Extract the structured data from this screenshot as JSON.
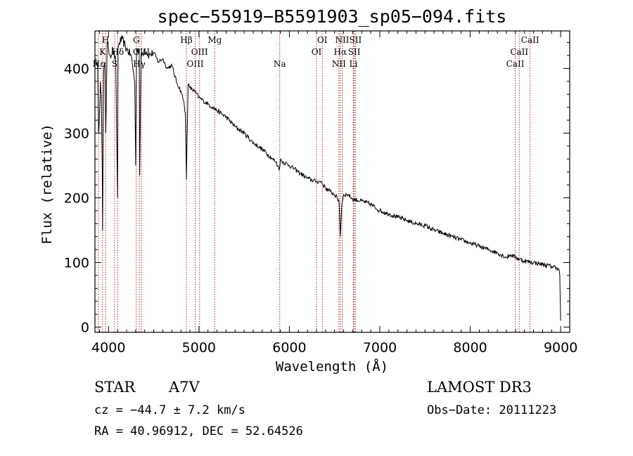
{
  "chart_data": {
    "type": "line",
    "title": "spec−55919−B5591903_sp05−094.fits",
    "xlabel": "Wavelength (Å)",
    "ylabel": "Flux (relative)",
    "xlim": [
      3850,
      9100
    ],
    "ylim": [
      -8,
      458
    ],
    "xticks": [
      4000,
      5000,
      6000,
      7000,
      8000,
      9000
    ],
    "xtick_labels": [
      "4000",
      "5000",
      "6000",
      "7000",
      "8000",
      "9000"
    ],
    "yticks": [
      0,
      100,
      200,
      300,
      400
    ],
    "ytick_labels": [
      "0",
      "100",
      "200",
      "300",
      "400"
    ],
    "series": [
      {
        "name": "spectrum",
        "x": [
          3860,
          3880,
          3890,
          3900,
          3910,
          3920,
          3930,
          3935,
          3945,
          3960,
          3970,
          3985,
          4000,
          4020,
          4050,
          4080,
          4100,
          4105,
          4120,
          4150,
          4200,
          4250,
          4290,
          4300,
          4310,
          4340,
          4345,
          4360,
          4400,
          4450,
          4500,
          4550,
          4600,
          4650,
          4700,
          4750,
          4800,
          4830,
          4850,
          4855,
          4862,
          4870,
          4880,
          4900,
          4950,
          5000,
          5050,
          5100,
          5150,
          5200,
          5300,
          5400,
          5500,
          5600,
          5700,
          5800,
          5850,
          5890,
          5900,
          6000,
          6100,
          6200,
          6300,
          6350,
          6400,
          6450,
          6500,
          6550,
          6563,
          6580,
          6600,
          6650,
          6700,
          6800,
          6900,
          7000,
          7100,
          7200,
          7300,
          7400,
          7500,
          7600,
          7700,
          7800,
          7900,
          8000,
          8100,
          8200,
          8300,
          8400,
          8450,
          8500,
          8600,
          8700,
          8800,
          8900,
          8960,
          8980,
          8990,
          9000
        ],
        "y": [
          415,
          400,
          300,
          330,
          380,
          360,
          250,
          150,
          390,
          410,
          300,
          440,
          430,
          420,
          430,
          410,
          200,
          430,
          440,
          445,
          430,
          420,
          380,
          250,
          430,
          430,
          235,
          420,
          430,
          420,
          425,
          410,
          415,
          400,
          405,
          380,
          365,
          350,
          330,
          290,
          228,
          300,
          375,
          370,
          365,
          355,
          350,
          345,
          340,
          335,
          325,
          310,
          300,
          285,
          275,
          262,
          255,
          245,
          258,
          250,
          240,
          230,
          225,
          225,
          215,
          210,
          205,
          195,
          140,
          190,
          205,
          205,
          198,
          195,
          190,
          180,
          175,
          170,
          165,
          160,
          157,
          150,
          145,
          140,
          135,
          130,
          125,
          120,
          115,
          108,
          112,
          108,
          102,
          100,
          97,
          94,
          92,
          90,
          80,
          10
        ]
      }
    ],
    "emission_lines": [
      {
        "label": "Hε",
        "lambda": 3889,
        "row": 3
      },
      {
        "label": "K",
        "lambda": 3934,
        "row": 2
      },
      {
        "label": "H",
        "lambda": 3968,
        "row": 1
      },
      {
        "label": "Hδ",
        "lambda": 4102,
        "row": 2
      },
      {
        "label": "S",
        "lambda": 4068,
        "row": 3
      },
      {
        "label": "G",
        "lambda": 4307,
        "row": 1
      },
      {
        "label": "OIII",
        "lambda": 4363,
        "row": 2
      },
      {
        "label": "Hγ",
        "lambda": 4340,
        "row": 3
      },
      {
        "label": "Hβ",
        "lambda": 4861,
        "row": 1
      },
      {
        "label": "OIII",
        "lambda": 4959,
        "row": 3
      },
      {
        "label": "OIII",
        "lambda": 5007,
        "row": 2
      },
      {
        "label": "Mg",
        "lambda": 5175,
        "row": 1
      },
      {
        "label": "Na",
        "lambda": 5893,
        "row": 3
      },
      {
        "label": "OI",
        "lambda": 6364,
        "row": 1
      },
      {
        "label": "OI",
        "lambda": 6300,
        "row": 2
      },
      {
        "label": "NII",
        "lambda": 6584,
        "row": 1
      },
      {
        "label": "Hα",
        "lambda": 6563,
        "row": 2
      },
      {
        "label": "NII",
        "lambda": 6548,
        "row": 3
      },
      {
        "label": "SII",
        "lambda": 6731,
        "row": 1
      },
      {
        "label": "SII",
        "lambda": 6717,
        "row": 2
      },
      {
        "label": "Li",
        "lambda": 6708,
        "row": 3
      },
      {
        "label": "CaII",
        "lambda": 8662,
        "row": 1
      },
      {
        "label": "CaII",
        "lambda": 8542,
        "row": 2
      },
      {
        "label": "CaII",
        "lambda": 8498,
        "row": 3
      }
    ]
  },
  "info": {
    "class": "STAR",
    "subclass": "A7V",
    "survey": "LAMOST DR3",
    "cz": "cz = −44.7 ± 7.2 km/s",
    "obs_date": "Obs−Date: 20111223",
    "radec": "RA =  40.96912, DEC =  52.64526"
  },
  "colors": {
    "line_marker": "#b22222",
    "spectrum": "#000000",
    "axes": "#000000"
  }
}
